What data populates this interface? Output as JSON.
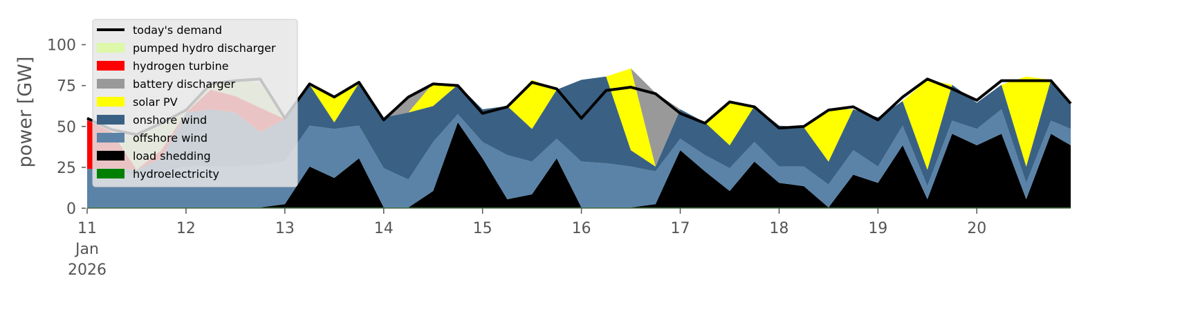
{
  "chart_data": {
    "type": "stackedarea",
    "ylabel": "power [GW]",
    "x": [
      11,
      11.25,
      11.5,
      11.75,
      12,
      12.25,
      12.5,
      12.75,
      13,
      13.25,
      13.5,
      13.75,
      14,
      14.25,
      14.5,
      14.75,
      15,
      15.25,
      15.5,
      15.75,
      16,
      16.25,
      16.5,
      16.75,
      17,
      17.25,
      17.5,
      17.75,
      18,
      18.25,
      18.5,
      18.75,
      19,
      19.25,
      19.5,
      19.75,
      20,
      20.25,
      20.5,
      20.75,
      20.95
    ],
    "xlim": [
      11,
      20.95
    ],
    "xticks": [
      {
        "value": 11,
        "label": "11\nJan\n2026"
      },
      12,
      13,
      14,
      15,
      16,
      17,
      18,
      19,
      20
    ],
    "ylim": [
      0,
      118
    ],
    "yticks": [
      0,
      25,
      50,
      75,
      100
    ],
    "legend_loc": "upper left",
    "demand": {
      "name": "today's demand",
      "color": "#000000",
      "values": [
        55,
        48,
        45,
        52,
        60,
        76,
        78,
        79,
        55,
        76,
        68,
        77,
        54,
        68,
        76,
        75,
        58,
        62,
        77,
        73,
        55,
        72,
        74,
        70,
        58,
        52,
        65,
        62,
        49,
        50,
        60,
        62,
        54,
        68,
        79,
        73,
        66,
        78,
        78,
        78,
        64
      ]
    },
    "series": [
      {
        "name": "hydroelectricity",
        "color": "#008000",
        "values": [
          0.5,
          0.5,
          0.5,
          0.5,
          0.5,
          0.5,
          0.5,
          0.5,
          0.5,
          0.5,
          0.5,
          0.5,
          0.5,
          0.5,
          0.5,
          0.5,
          0.5,
          0.5,
          0.5,
          0.5,
          0.5,
          0.5,
          0.5,
          0.5,
          0.5,
          0.5,
          0.5,
          0.5,
          0.5,
          0.5,
          0.5,
          0.5,
          0.5,
          0.5,
          0.5,
          0.5,
          0.5,
          0.5,
          0.5,
          0.5,
          0.5
        ]
      },
      {
        "name": "load shedding",
        "color": "#000000",
        "values": [
          0,
          0,
          0,
          0,
          0,
          0,
          0,
          0,
          2,
          25,
          18,
          30,
          0,
          0,
          10,
          52,
          30,
          5,
          8,
          30,
          0,
          0,
          0,
          2,
          35,
          22,
          10,
          28,
          15,
          13,
          0,
          20,
          15,
          38,
          5,
          45,
          38,
          45,
          5,
          45,
          38
        ]
      },
      {
        "name": "offshore wind",
        "color": "#5b83a8",
        "values": [
          23.5,
          22,
          20,
          22,
          25,
          25,
          25,
          26,
          26,
          25,
          30,
          20,
          24,
          17,
          30,
          5,
          10,
          27,
          20,
          12,
          28,
          27,
          25,
          20,
          7,
          10,
          14,
          12,
          10,
          12,
          14,
          15,
          10,
          12,
          8,
          8,
          10,
          15,
          10,
          8,
          10
        ]
      },
      {
        "name": "onshore wind",
        "color": "#3a6184",
        "values": [
          0,
          2,
          3,
          8,
          33,
          35,
          33,
          20,
          26,
          25,
          4,
          26,
          31,
          41,
          22,
          18,
          20,
          30,
          20,
          30,
          50,
          53,
          10,
          3,
          18,
          20,
          14,
          22,
          25,
          24,
          14,
          25,
          30,
          15,
          10,
          22,
          16,
          15,
          10,
          25,
          15
        ]
      },
      {
        "name": "solar PV",
        "color": "#ffff00",
        "values": [
          0,
          0,
          0,
          0,
          0,
          0,
          0,
          0,
          0,
          0,
          16,
          0,
          0,
          0,
          14,
          0,
          0,
          0,
          30,
          0,
          0,
          0,
          50,
          0,
          0,
          0,
          27,
          0,
          0,
          0,
          32,
          0,
          0,
          0,
          55,
          0,
          0,
          0,
          55,
          0,
          0
        ]
      },
      {
        "name": "battery discharger",
        "color": "#999999",
        "values": [
          0,
          0,
          0,
          0,
          0,
          0,
          0,
          0,
          0,
          0,
          0,
          0,
          0,
          10,
          0,
          0,
          0,
          0,
          0,
          0,
          0,
          0,
          0,
          45,
          0,
          0,
          0,
          0,
          0,
          0,
          0,
          0,
          0,
          0,
          0,
          0,
          0,
          0,
          0,
          0,
          0
        ]
      },
      {
        "name": "hydrogen turbine",
        "color": "#ff0000",
        "values": [
          30,
          22,
          0,
          5,
          0,
          12,
          10,
          15,
          0,
          0,
          0,
          0,
          0,
          0,
          0,
          0,
          0,
          0,
          0,
          0,
          0,
          0,
          0,
          0,
          0,
          0,
          0,
          0,
          0,
          0,
          0,
          0,
          0,
          0,
          0,
          0,
          0,
          0,
          0,
          0,
          0
        ]
      },
      {
        "name": "pumped hydro discharger",
        "color": "#dcf8a8",
        "values": [
          0,
          0,
          20,
          15,
          0,
          4,
          10,
          15,
          0,
          0,
          0,
          0,
          0,
          0,
          0,
          0,
          0,
          0,
          0,
          0,
          0,
          0,
          0,
          0,
          0,
          0,
          0,
          0,
          0,
          0,
          0,
          0,
          0,
          0,
          0,
          0,
          0,
          0,
          0,
          0,
          0
        ]
      }
    ]
  }
}
